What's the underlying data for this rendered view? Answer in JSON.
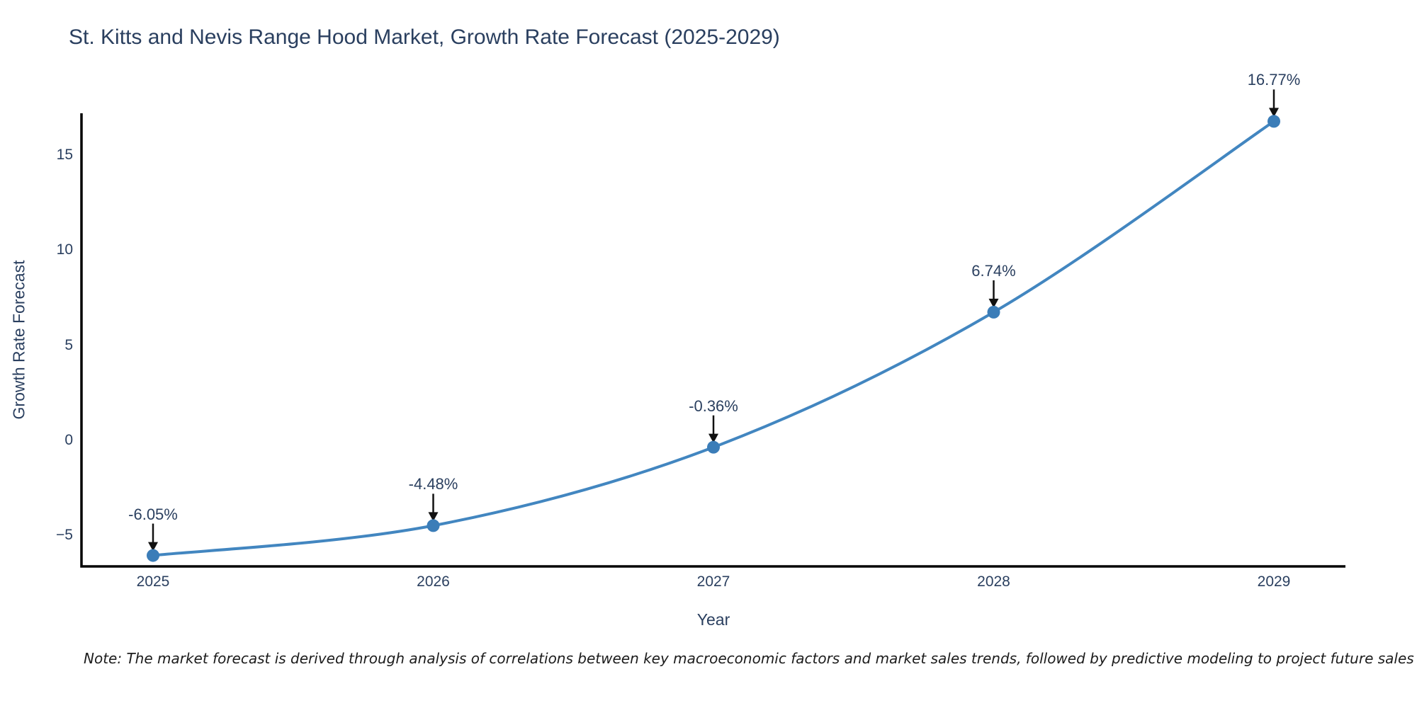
{
  "title": "St. Kitts and Nevis Range Hood Market, Growth Rate Forecast (2025-2029)",
  "chart_data": {
    "type": "line",
    "title": "St. Kitts and Nevis Range Hood Market, Growth Rate Forecast (2025-2029)",
    "x": [
      2025,
      2026,
      2027,
      2028,
      2029
    ],
    "values": [
      -6.05,
      -4.48,
      -0.36,
      6.74,
      16.77
    ],
    "point_labels": [
      "-6.05%",
      "-4.48%",
      "-0.36%",
      "6.74%",
      "16.77%"
    ],
    "xtick_labels": [
      "2025",
      "2026",
      "2027",
      "2028",
      "2029"
    ],
    "yticks": [
      15,
      10,
      5,
      0,
      -5
    ],
    "ytick_labels": [
      "15",
      "10",
      "5",
      "0",
      "−5"
    ],
    "xlabel": "Year",
    "ylabel": "Growth Rate Forecast",
    "ylim": [
      -6.6,
      17.2
    ],
    "grid": false,
    "legend": "none",
    "line_color": "#4286c0",
    "marker_color": "#3b7db8",
    "axis_color": "#000000",
    "text_color": "#2a3f5f",
    "arrow_color": "#111111"
  },
  "note": "Note: The market forecast is derived through analysis of correlations between key macroeconomic factors and market sales trends, followed by predictive modeling to project future sales"
}
